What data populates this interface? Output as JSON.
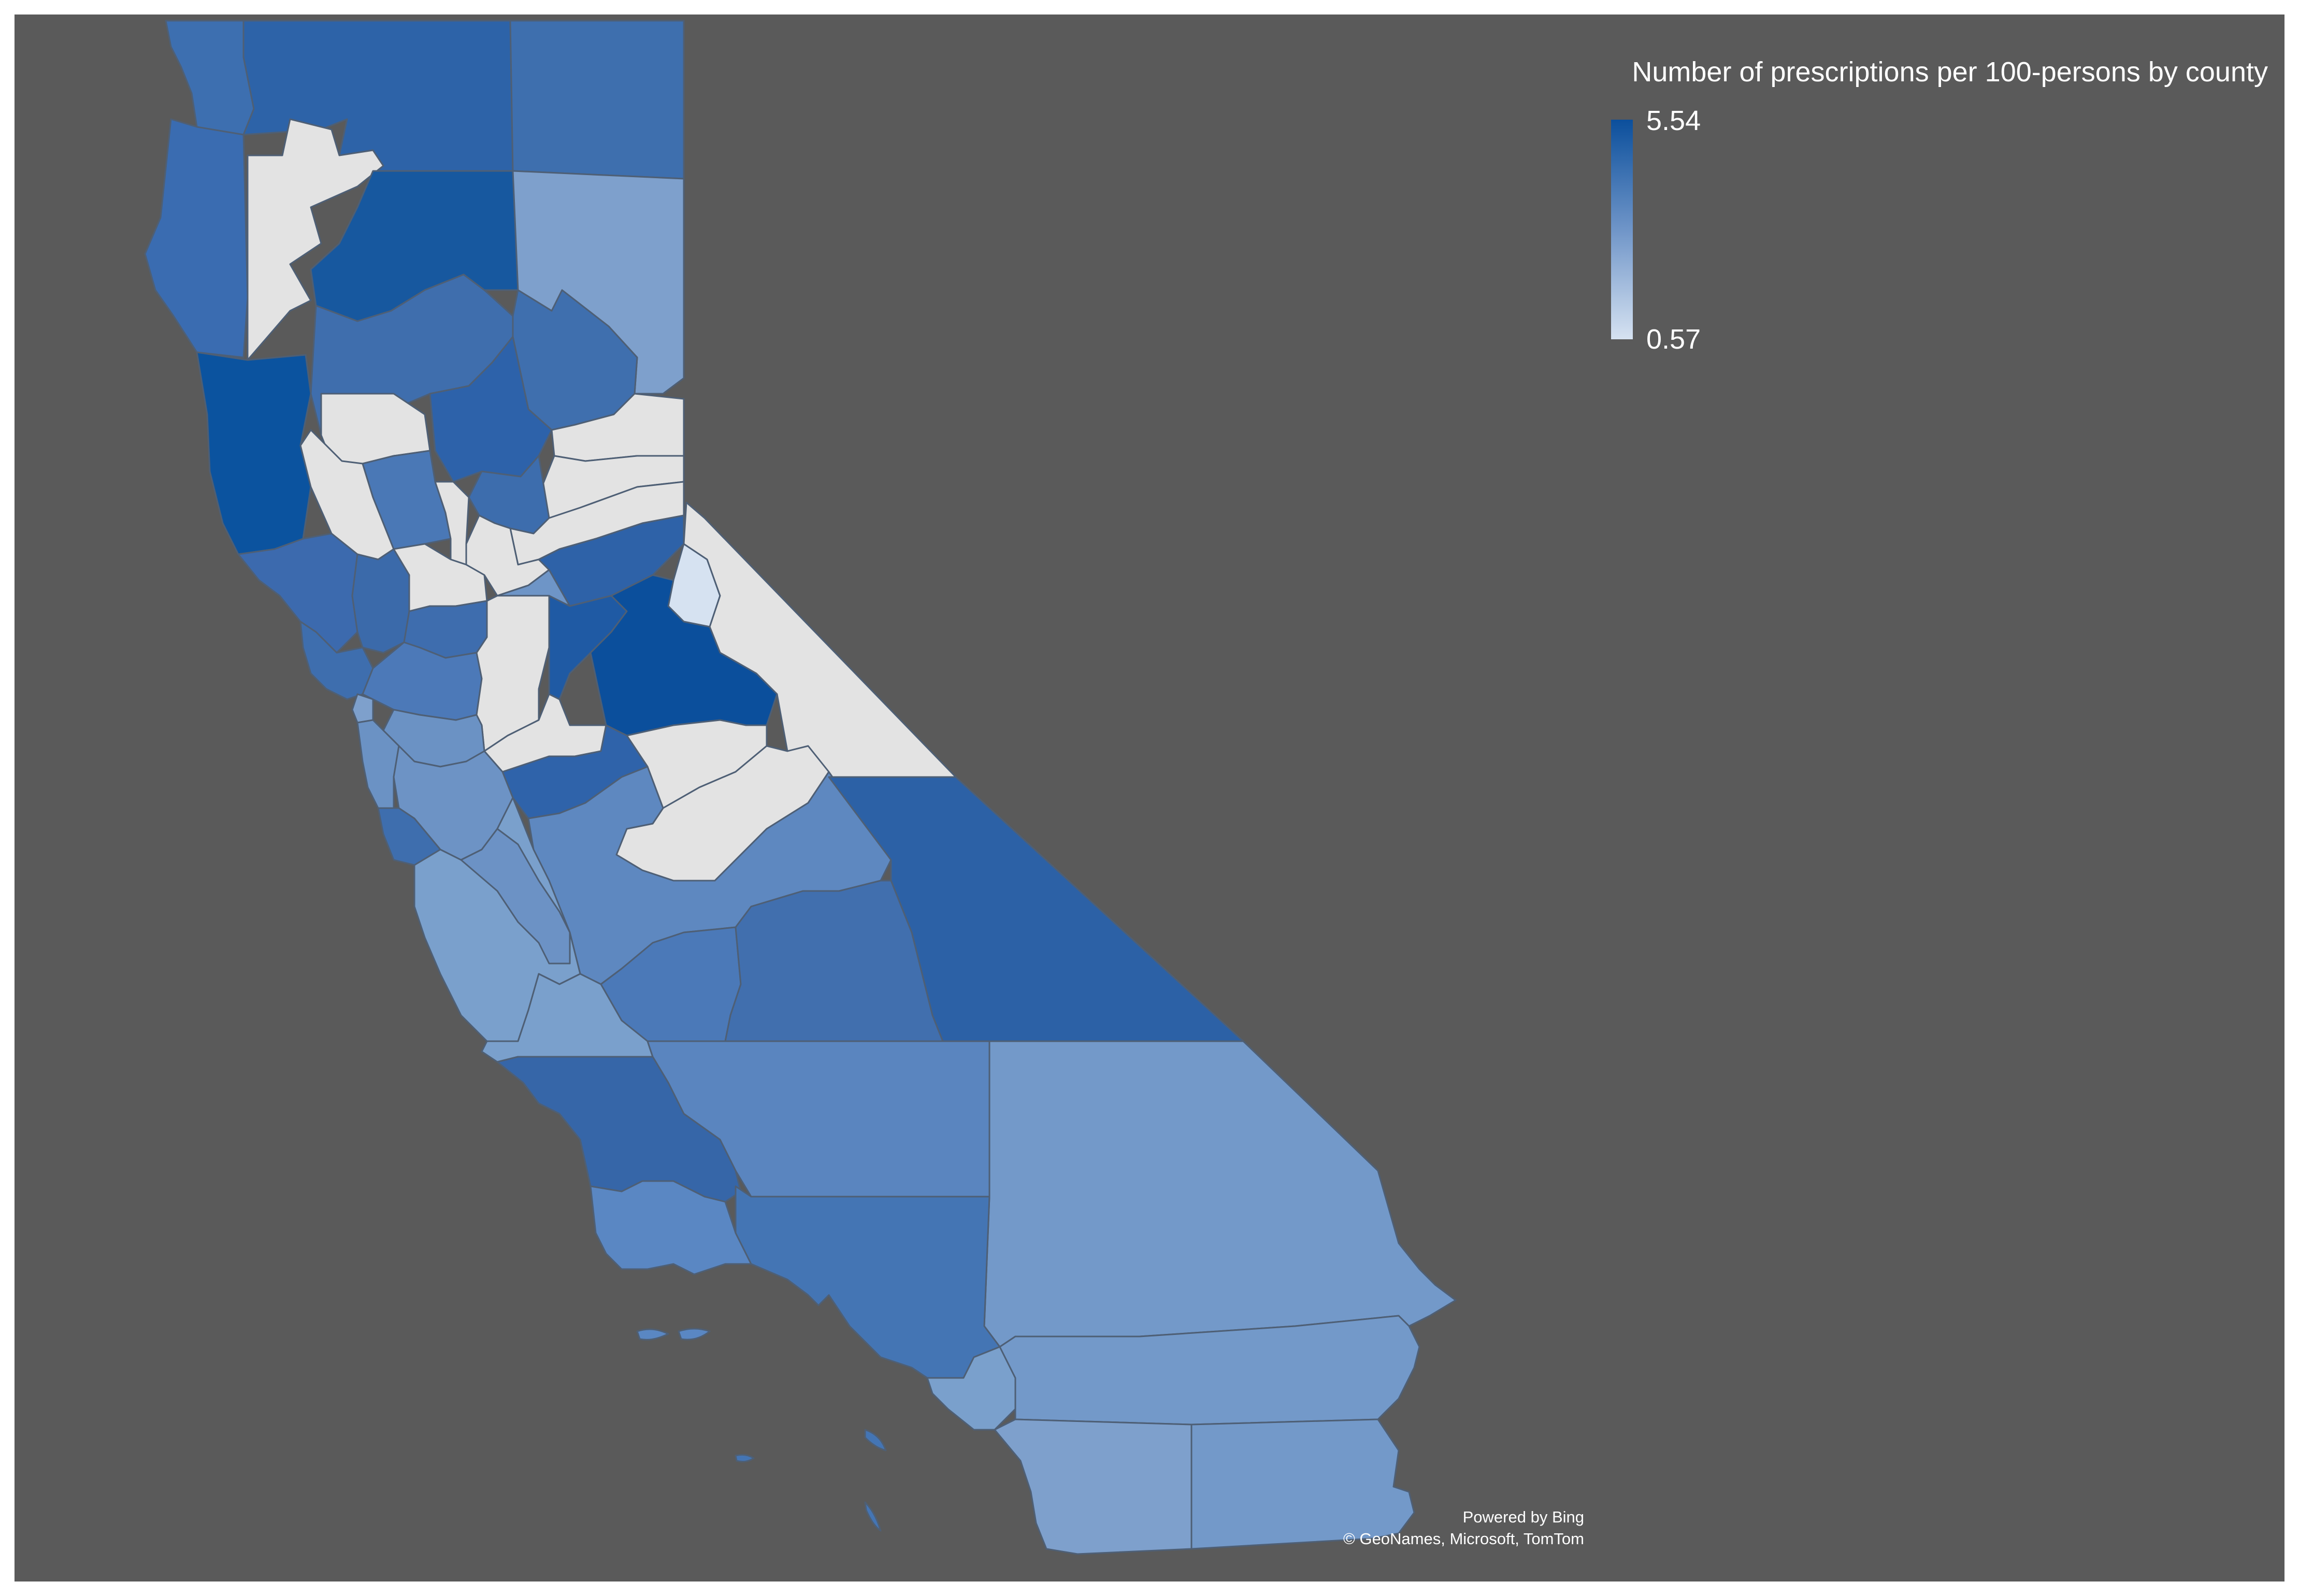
{
  "legend": {
    "title": "Number of prescriptions per 100-persons by county",
    "max_label": "5.54",
    "min_label": "0.57",
    "max_color": "#0b4f9c",
    "min_color": "#d6e2f1"
  },
  "attribution": {
    "line1": "Powered by Bing",
    "line2": "© GeoNames, Microsoft, TomTom"
  },
  "colors": {
    "background": "#5a5a5a",
    "no_data": "#e3e3e3"
  },
  "map_data": {
    "type": "choropleth",
    "region": "California",
    "scale": {
      "min": 0.57,
      "max": 5.54
    },
    "counties_shown": 58
  }
}
